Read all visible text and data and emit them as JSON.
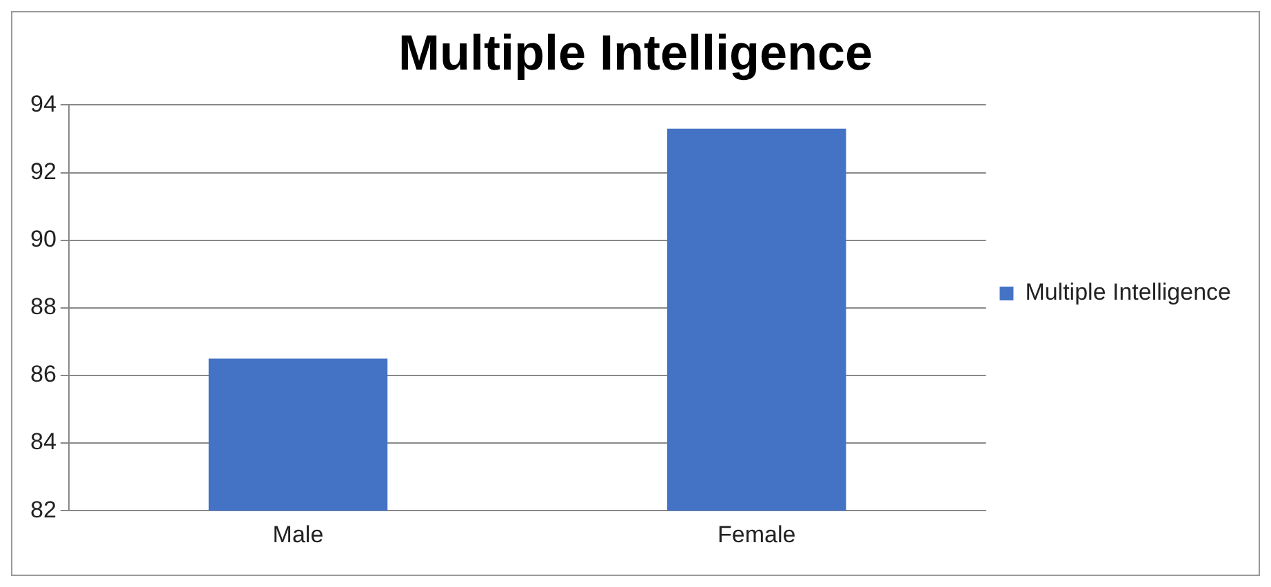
{
  "chart_data": {
    "type": "bar",
    "title": "Multiple Intelligence",
    "categories": [
      "Male",
      "Female"
    ],
    "series": [
      {
        "name": "Multiple Intelligence",
        "color": "#4472c4",
        "values": [
          86.5,
          93.3
        ]
      }
    ],
    "ylim": [
      82,
      94
    ],
    "yticks": [
      82,
      84,
      86,
      88,
      90,
      92,
      94
    ],
    "grid": "y",
    "legend": "right"
  }
}
